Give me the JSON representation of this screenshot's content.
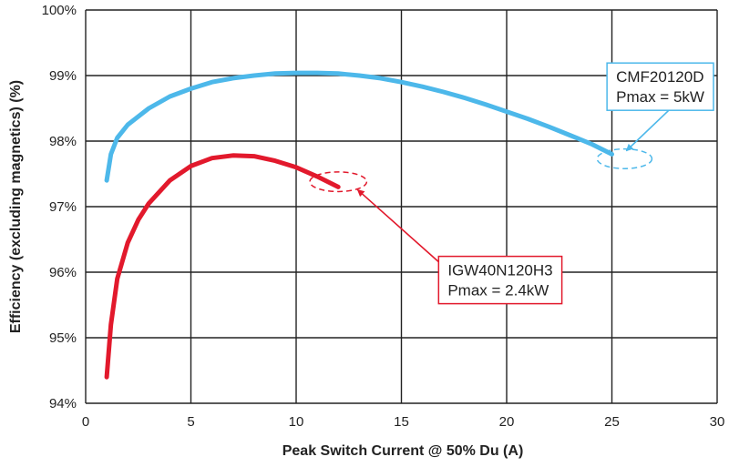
{
  "chart_data": {
    "type": "line",
    "title": "",
    "xlabel": "Peak Switch Current @ 50% Du (A)",
    "ylabel": "Efficiency (excluding magnetics) (%)",
    "xlim": [
      0,
      30
    ],
    "ylim": [
      94,
      100
    ],
    "x_ticks": [
      0,
      5,
      10,
      15,
      20,
      25,
      30
    ],
    "y_ticks": [
      94,
      95,
      96,
      97,
      98,
      99,
      100
    ],
    "y_tick_suffix": "%",
    "grid": true,
    "series": [
      {
        "name": "CMF20120D",
        "color": "#4db8ea",
        "points": [
          [
            1.0,
            97.4
          ],
          [
            1.2,
            97.8
          ],
          [
            1.5,
            98.05
          ],
          [
            2,
            98.25
          ],
          [
            3,
            98.5
          ],
          [
            4,
            98.68
          ],
          [
            5,
            98.8
          ],
          [
            6,
            98.9
          ],
          [
            7,
            98.96
          ],
          [
            8,
            99.0
          ],
          [
            9,
            99.03
          ],
          [
            10,
            99.04
          ],
          [
            11,
            99.04
          ],
          [
            12,
            99.03
          ],
          [
            13,
            99.0
          ],
          [
            14,
            98.96
          ],
          [
            15,
            98.9
          ],
          [
            16,
            98.83
          ],
          [
            17,
            98.75
          ],
          [
            18,
            98.66
          ],
          [
            19,
            98.56
          ],
          [
            20,
            98.45
          ],
          [
            21,
            98.34
          ],
          [
            22,
            98.22
          ],
          [
            23,
            98.09
          ],
          [
            24,
            97.96
          ],
          [
            25,
            97.8
          ]
        ]
      },
      {
        "name": "IGW40N120H3",
        "color": "#e2192c",
        "points": [
          [
            1.0,
            94.4
          ],
          [
            1.2,
            95.2
          ],
          [
            1.5,
            95.9
          ],
          [
            2,
            96.45
          ],
          [
            2.5,
            96.8
          ],
          [
            3,
            97.05
          ],
          [
            4,
            97.4
          ],
          [
            5,
            97.62
          ],
          [
            6,
            97.74
          ],
          [
            7,
            97.78
          ],
          [
            8,
            97.77
          ],
          [
            9,
            97.7
          ],
          [
            10,
            97.6
          ],
          [
            11,
            97.46
          ],
          [
            12,
            97.3
          ]
        ]
      }
    ],
    "annotations": [
      {
        "id": "cmf",
        "lines": [
          "CMF20120D",
          "Pmax = 5kW"
        ],
        "color": "#4db8ea",
        "text_xy": [
          25.2,
          98.9
        ],
        "ellipse_center": [
          25.6,
          97.73
        ],
        "ellipse_rx": 1.3,
        "ellipse_ry": 0.15
      },
      {
        "id": "igw",
        "lines": [
          "IGW40N120H3",
          "Pmax = 2.4kW"
        ],
        "color": "#e2192c",
        "text_xy": [
          17.2,
          95.95
        ],
        "ellipse_center": [
          12.0,
          97.38
        ],
        "ellipse_rx": 1.35,
        "ellipse_ry": 0.15
      }
    ]
  }
}
